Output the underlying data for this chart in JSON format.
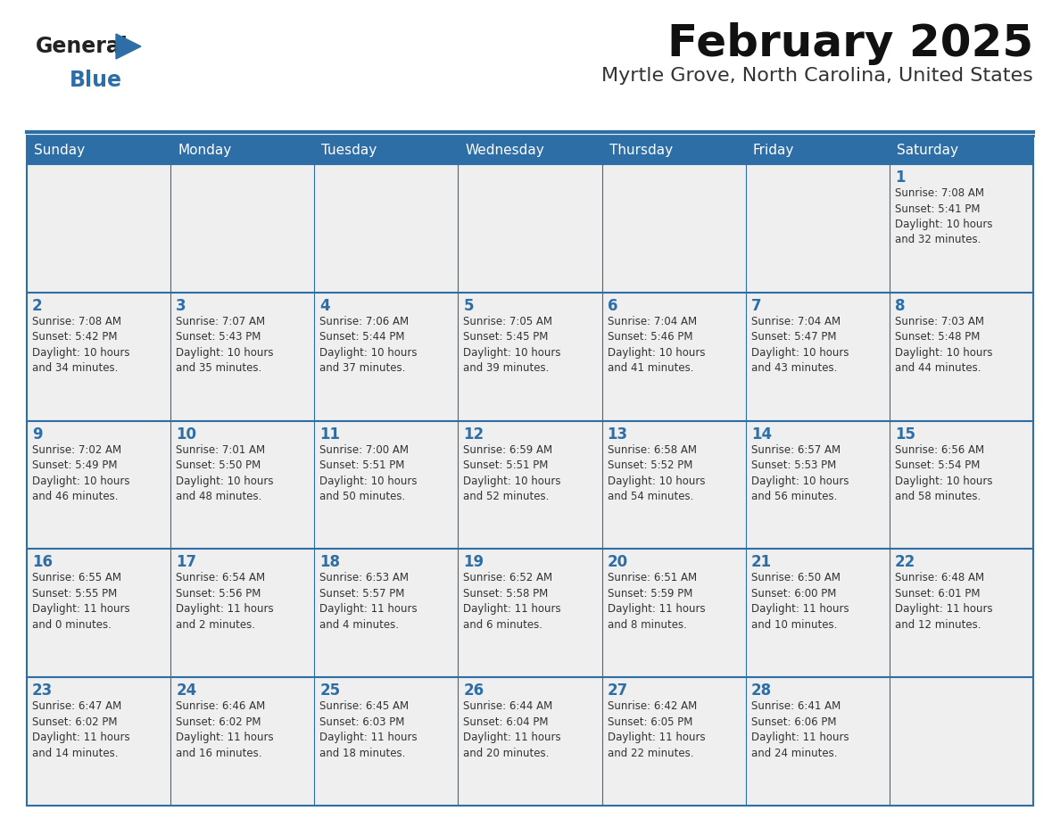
{
  "title": "February 2025",
  "subtitle": "Myrtle Grove, North Carolina, United States",
  "header_bg_color": "#2E6EA6",
  "header_text_color": "#FFFFFF",
  "cell_bg_color": "#EFEFEF",
  "cell_text_color": "#333333",
  "day_num_color": "#2E6EA6",
  "border_color": "#2E6EA6",
  "empty_cell_bg": "#EFEFEF",
  "days_of_week": [
    "Sunday",
    "Monday",
    "Tuesday",
    "Wednesday",
    "Thursday",
    "Friday",
    "Saturday"
  ],
  "weeks": [
    [
      {
        "day": null,
        "info": null
      },
      {
        "day": null,
        "info": null
      },
      {
        "day": null,
        "info": null
      },
      {
        "day": null,
        "info": null
      },
      {
        "day": null,
        "info": null
      },
      {
        "day": null,
        "info": null
      },
      {
        "day": 1,
        "info": "Sunrise: 7:08 AM\nSunset: 5:41 PM\nDaylight: 10 hours\nand 32 minutes."
      }
    ],
    [
      {
        "day": 2,
        "info": "Sunrise: 7:08 AM\nSunset: 5:42 PM\nDaylight: 10 hours\nand 34 minutes."
      },
      {
        "day": 3,
        "info": "Sunrise: 7:07 AM\nSunset: 5:43 PM\nDaylight: 10 hours\nand 35 minutes."
      },
      {
        "day": 4,
        "info": "Sunrise: 7:06 AM\nSunset: 5:44 PM\nDaylight: 10 hours\nand 37 minutes."
      },
      {
        "day": 5,
        "info": "Sunrise: 7:05 AM\nSunset: 5:45 PM\nDaylight: 10 hours\nand 39 minutes."
      },
      {
        "day": 6,
        "info": "Sunrise: 7:04 AM\nSunset: 5:46 PM\nDaylight: 10 hours\nand 41 minutes."
      },
      {
        "day": 7,
        "info": "Sunrise: 7:04 AM\nSunset: 5:47 PM\nDaylight: 10 hours\nand 43 minutes."
      },
      {
        "day": 8,
        "info": "Sunrise: 7:03 AM\nSunset: 5:48 PM\nDaylight: 10 hours\nand 44 minutes."
      }
    ],
    [
      {
        "day": 9,
        "info": "Sunrise: 7:02 AM\nSunset: 5:49 PM\nDaylight: 10 hours\nand 46 minutes."
      },
      {
        "day": 10,
        "info": "Sunrise: 7:01 AM\nSunset: 5:50 PM\nDaylight: 10 hours\nand 48 minutes."
      },
      {
        "day": 11,
        "info": "Sunrise: 7:00 AM\nSunset: 5:51 PM\nDaylight: 10 hours\nand 50 minutes."
      },
      {
        "day": 12,
        "info": "Sunrise: 6:59 AM\nSunset: 5:51 PM\nDaylight: 10 hours\nand 52 minutes."
      },
      {
        "day": 13,
        "info": "Sunrise: 6:58 AM\nSunset: 5:52 PM\nDaylight: 10 hours\nand 54 minutes."
      },
      {
        "day": 14,
        "info": "Sunrise: 6:57 AM\nSunset: 5:53 PM\nDaylight: 10 hours\nand 56 minutes."
      },
      {
        "day": 15,
        "info": "Sunrise: 6:56 AM\nSunset: 5:54 PM\nDaylight: 10 hours\nand 58 minutes."
      }
    ],
    [
      {
        "day": 16,
        "info": "Sunrise: 6:55 AM\nSunset: 5:55 PM\nDaylight: 11 hours\nand 0 minutes."
      },
      {
        "day": 17,
        "info": "Sunrise: 6:54 AM\nSunset: 5:56 PM\nDaylight: 11 hours\nand 2 minutes."
      },
      {
        "day": 18,
        "info": "Sunrise: 6:53 AM\nSunset: 5:57 PM\nDaylight: 11 hours\nand 4 minutes."
      },
      {
        "day": 19,
        "info": "Sunrise: 6:52 AM\nSunset: 5:58 PM\nDaylight: 11 hours\nand 6 minutes."
      },
      {
        "day": 20,
        "info": "Sunrise: 6:51 AM\nSunset: 5:59 PM\nDaylight: 11 hours\nand 8 minutes."
      },
      {
        "day": 21,
        "info": "Sunrise: 6:50 AM\nSunset: 6:00 PM\nDaylight: 11 hours\nand 10 minutes."
      },
      {
        "day": 22,
        "info": "Sunrise: 6:48 AM\nSunset: 6:01 PM\nDaylight: 11 hours\nand 12 minutes."
      }
    ],
    [
      {
        "day": 23,
        "info": "Sunrise: 6:47 AM\nSunset: 6:02 PM\nDaylight: 11 hours\nand 14 minutes."
      },
      {
        "day": 24,
        "info": "Sunrise: 6:46 AM\nSunset: 6:02 PM\nDaylight: 11 hours\nand 16 minutes."
      },
      {
        "day": 25,
        "info": "Sunrise: 6:45 AM\nSunset: 6:03 PM\nDaylight: 11 hours\nand 18 minutes."
      },
      {
        "day": 26,
        "info": "Sunrise: 6:44 AM\nSunset: 6:04 PM\nDaylight: 11 hours\nand 20 minutes."
      },
      {
        "day": 27,
        "info": "Sunrise: 6:42 AM\nSunset: 6:05 PM\nDaylight: 11 hours\nand 22 minutes."
      },
      {
        "day": 28,
        "info": "Sunrise: 6:41 AM\nSunset: 6:06 PM\nDaylight: 11 hours\nand 24 minutes."
      },
      {
        "day": null,
        "info": null
      }
    ]
  ],
  "logo_general_color": "#222222",
  "logo_blue_color": "#2E6EA6",
  "title_fontsize": 36,
  "subtitle_fontsize": 16,
  "header_fontsize": 11,
  "day_num_fontsize": 12,
  "info_fontsize": 8.5
}
